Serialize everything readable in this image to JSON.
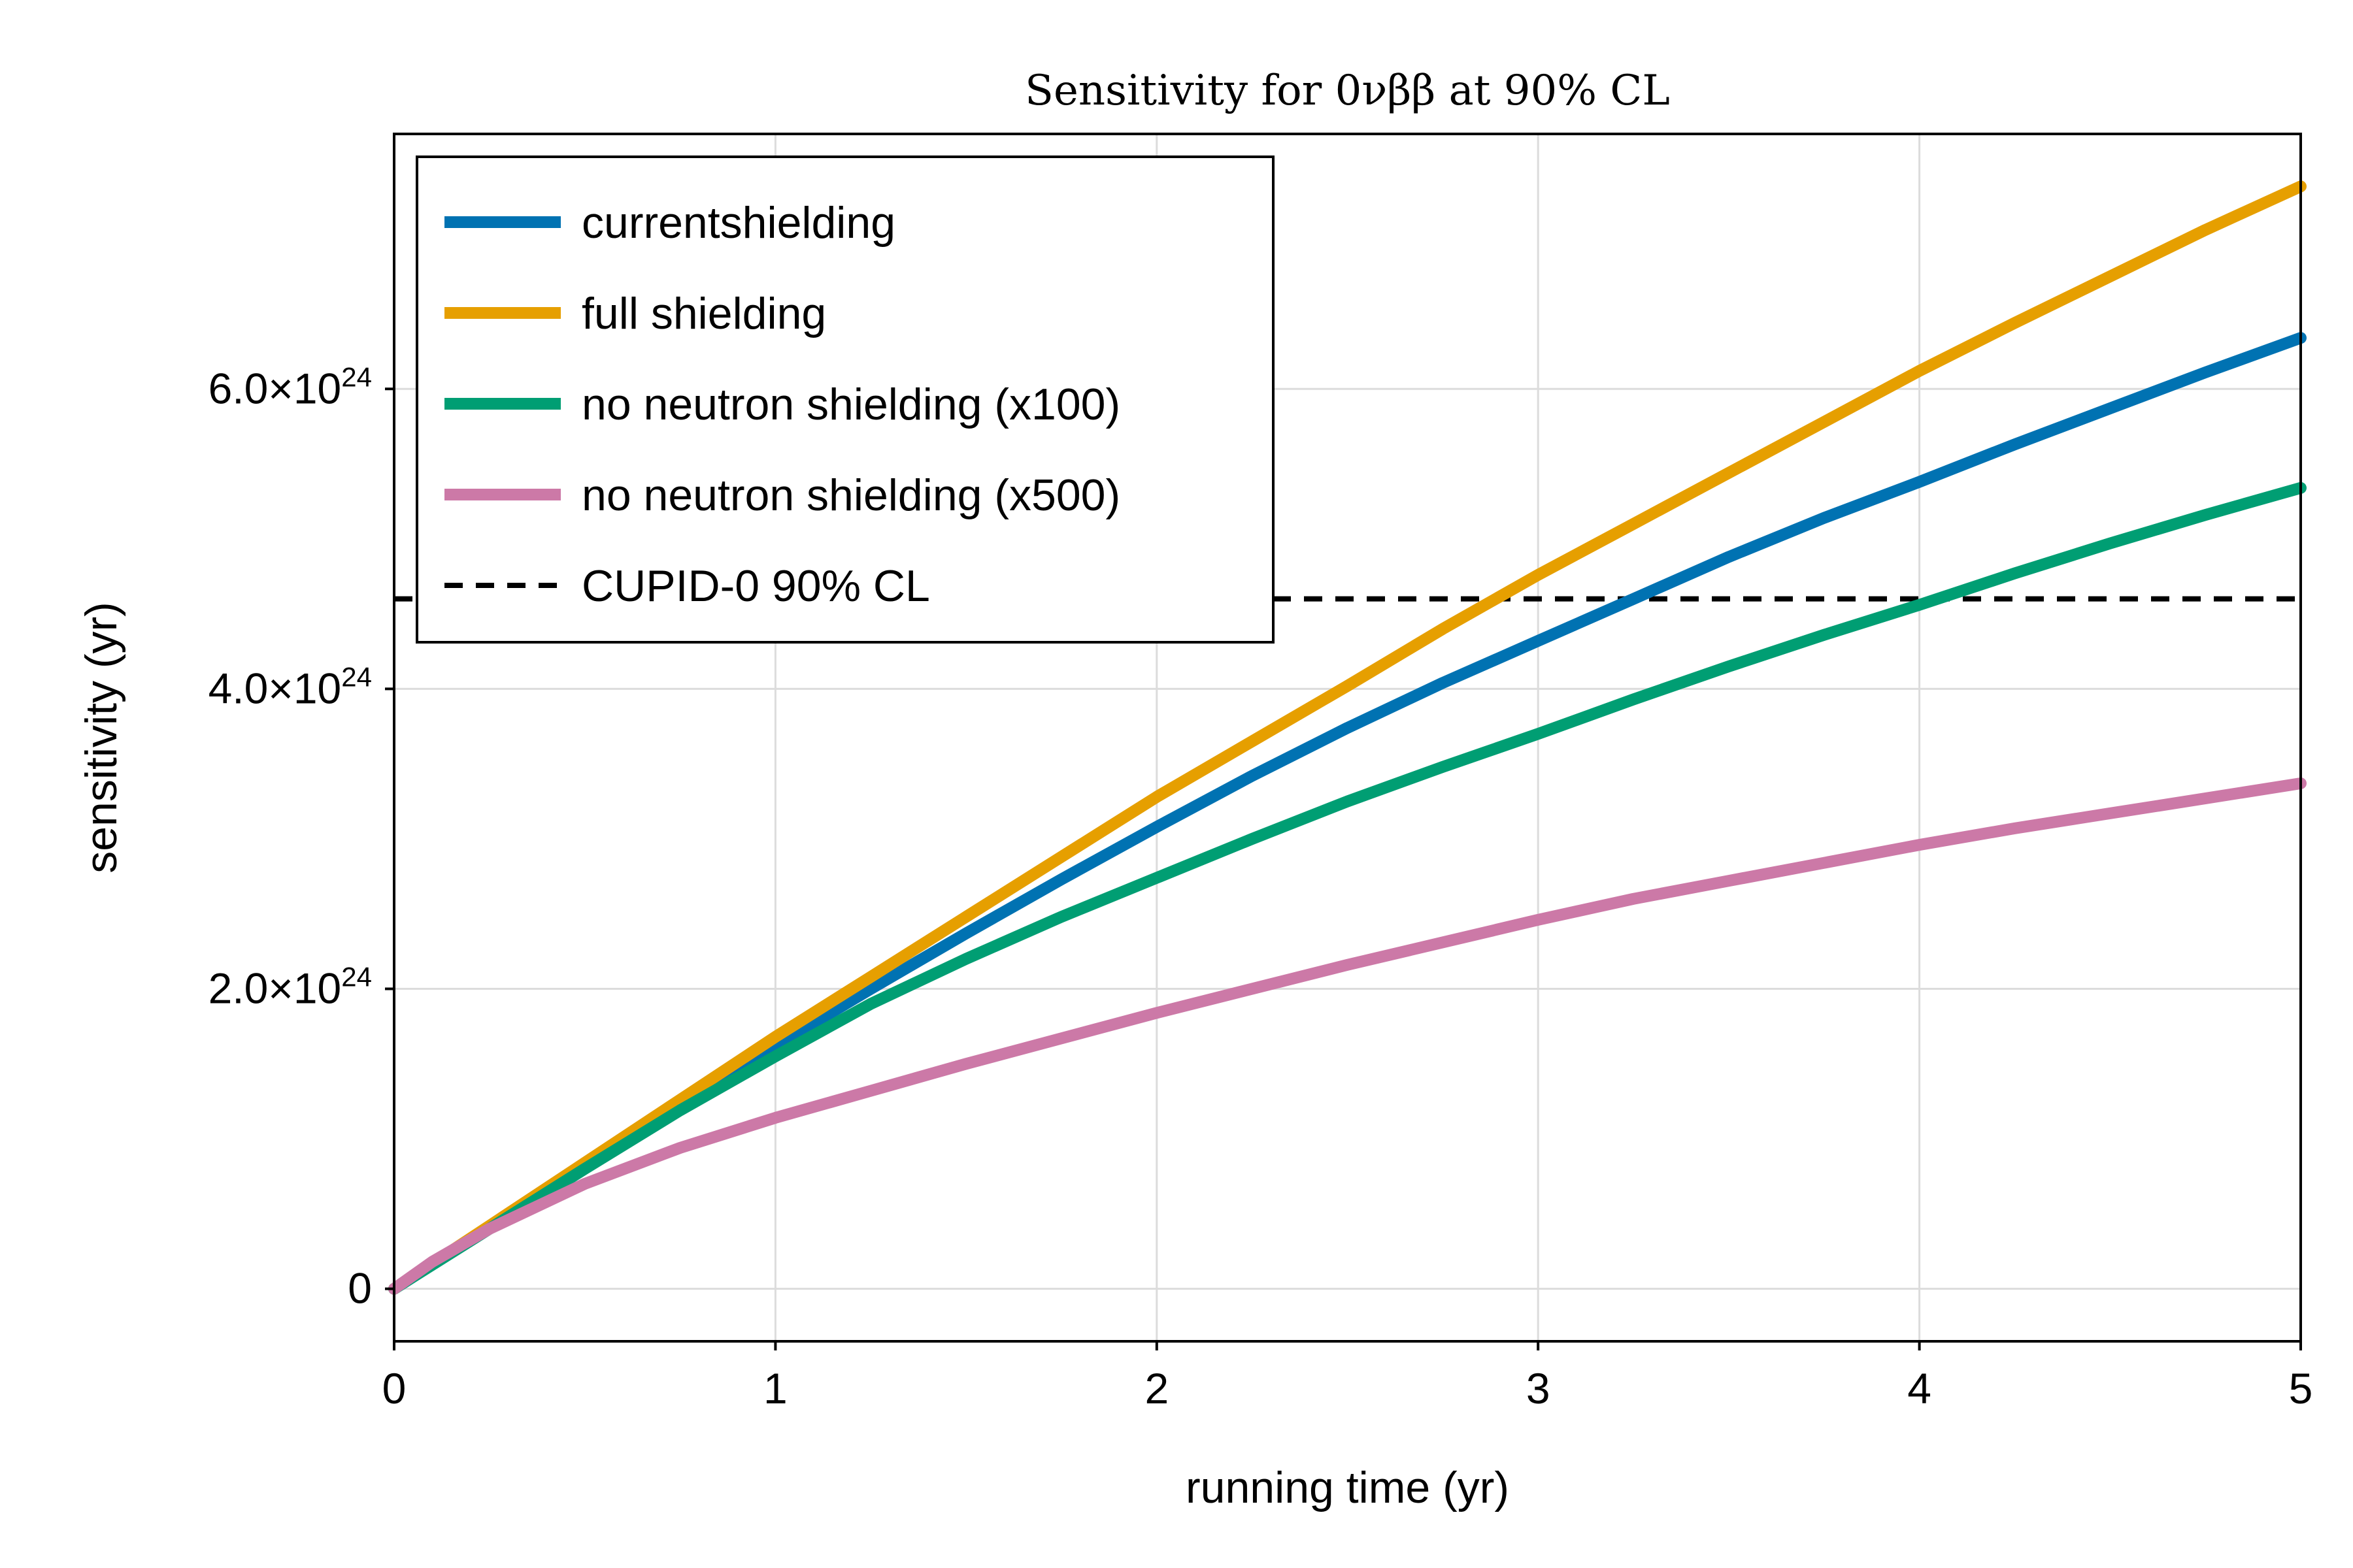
{
  "chart_data": {
    "type": "line",
    "title": "Sensitivity for 0νββ at 90% CL",
    "xlabel": "running time (yr)",
    "ylabel": "sensitivity (yr)",
    "xlim": [
      0,
      5
    ],
    "ylim": [
      -3.5e+23,
      7.7e+24
    ],
    "x_ticks": [
      {
        "value": 0,
        "label": "0"
      },
      {
        "value": 1,
        "label": "1"
      },
      {
        "value": 2,
        "label": "2"
      },
      {
        "value": 3,
        "label": "3"
      },
      {
        "value": 4,
        "label": "4"
      },
      {
        "value": 5,
        "label": "5"
      }
    ],
    "y_ticks": [
      {
        "value": 0,
        "mantissa": "0",
        "exponent": ""
      },
      {
        "value": 2e+24,
        "mantissa": "2.0×10",
        "exponent": "24"
      },
      {
        "value": 4e+24,
        "mantissa": "4.0×10",
        "exponent": "24"
      },
      {
        "value": 6e+24,
        "mantissa": "6.0×10",
        "exponent": "24"
      }
    ],
    "grid": true,
    "legend_position": "top-left",
    "series": [
      {
        "name": "currentshielding",
        "color": "#0072b2",
        "x": [
          0,
          0.25,
          0.5,
          0.75,
          1.0,
          1.25,
          1.5,
          1.75,
          2.0,
          2.25,
          2.5,
          2.75,
          3.0,
          3.25,
          3.5,
          3.75,
          4.0,
          4.25,
          4.5,
          4.75,
          5.0
        ],
        "y": [
          0,
          4.1e+23,
          8.2e+23,
          1.22e+24,
          1.62e+24,
          2e+24,
          2.37e+24,
          2.73e+24,
          3.08e+24,
          3.42e+24,
          3.74e+24,
          4.04e+24,
          4.32e+24,
          4.6e+24,
          4.88e+24,
          5.14e+24,
          5.38e+24,
          5.63e+24,
          5.87e+24,
          6.11e+24,
          6.34e+24
        ]
      },
      {
        "name": "full shielding",
        "color": "#e69f00",
        "x": [
          0,
          0.25,
          0.5,
          0.75,
          1.0,
          1.25,
          1.5,
          1.75,
          2.0,
          2.25,
          2.5,
          2.75,
          3.0,
          3.25,
          3.5,
          3.75,
          4.0,
          4.25,
          4.5,
          4.75,
          5.0
        ],
        "y": [
          0,
          4.2e+23,
          8.4e+23,
          1.26e+24,
          1.68e+24,
          2.08e+24,
          2.48e+24,
          2.88e+24,
          3.28e+24,
          3.65e+24,
          4.02e+24,
          4.4e+24,
          4.76e+24,
          5.1e+24,
          5.44e+24,
          5.78e+24,
          6.12e+24,
          6.44e+24,
          6.75e+24,
          7.06e+24,
          7.35e+24
        ]
      },
      {
        "name": "no neutron shielding (x100)",
        "color": "#009e73",
        "x": [
          0,
          0.25,
          0.5,
          0.75,
          1.0,
          1.25,
          1.5,
          1.75,
          2.0,
          2.25,
          2.5,
          2.75,
          3.0,
          3.25,
          3.5,
          3.75,
          4.0,
          4.25,
          4.5,
          4.75,
          5.0
        ],
        "y": [
          0,
          4e+23,
          8e+23,
          1.19e+24,
          1.55e+24,
          1.9e+24,
          2.2e+24,
          2.48e+24,
          2.74e+24,
          3e+24,
          3.25e+24,
          3.48e+24,
          3.7e+24,
          3.93e+24,
          4.15e+24,
          4.36e+24,
          4.56e+24,
          4.77e+24,
          4.97e+24,
          5.16e+24,
          5.34e+24
        ]
      },
      {
        "name": "no neutron shielding (x500)",
        "color": "#cc79a7",
        "x": [
          0,
          0.1,
          0.25,
          0.5,
          0.75,
          1.0,
          1.25,
          1.5,
          1.75,
          2.0,
          2.25,
          2.5,
          2.75,
          3.0,
          3.25,
          3.5,
          3.75,
          4.0,
          4.25,
          4.5,
          4.75,
          5.0
        ],
        "y": [
          0,
          1.8e+23,
          4e+23,
          7e+23,
          9.4e+23,
          1.14e+24,
          1.32e+24,
          1.5e+24,
          1.67e+24,
          1.84e+24,
          2e+24,
          2.16e+24,
          2.31e+24,
          2.46e+24,
          2.6e+24,
          2.72e+24,
          2.84e+24,
          2.96e+24,
          3.07e+24,
          3.17e+24,
          3.27e+24,
          3.37e+24
        ]
      }
    ],
    "reference_lines": [
      {
        "name": "CUPID-0 90% CL",
        "y": 4.6e+24,
        "color": "#000000",
        "style": "dashed"
      }
    ]
  }
}
